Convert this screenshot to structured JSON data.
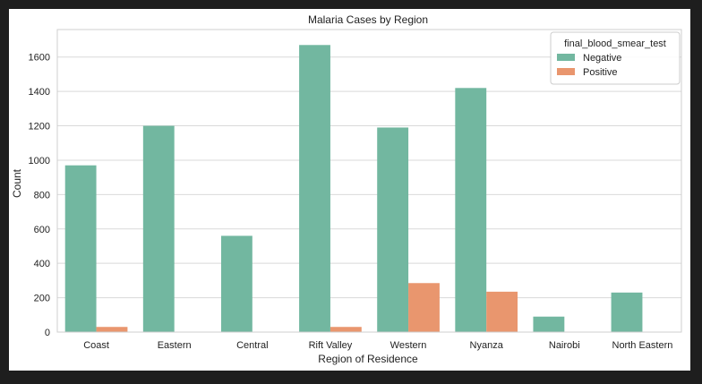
{
  "chart_data": {
    "type": "bar",
    "title": "Malaria Cases by Region",
    "xlabel": "Region of Residence",
    "ylabel": "Count",
    "categories": [
      "Coast",
      "Eastern",
      "Central",
      "Rift Valley",
      "Western",
      "Nyanza",
      "Nairobi",
      "North Eastern"
    ],
    "series": [
      {
        "name": "Negative",
        "color": "#72b7a0",
        "values": [
          970,
          1200,
          560,
          1670,
          1190,
          1420,
          90,
          230
        ]
      },
      {
        "name": "Positive",
        "color": "#e9966e",
        "values": [
          30,
          0,
          0,
          30,
          285,
          235,
          0,
          0
        ]
      }
    ],
    "ylim": [
      0,
      1760
    ],
    "yticks": [
      0,
      200,
      400,
      600,
      800,
      1000,
      1200,
      1400,
      1600
    ],
    "legend": {
      "title": "final_blood_smear_test",
      "placement": "top-right"
    },
    "grid": true
  }
}
